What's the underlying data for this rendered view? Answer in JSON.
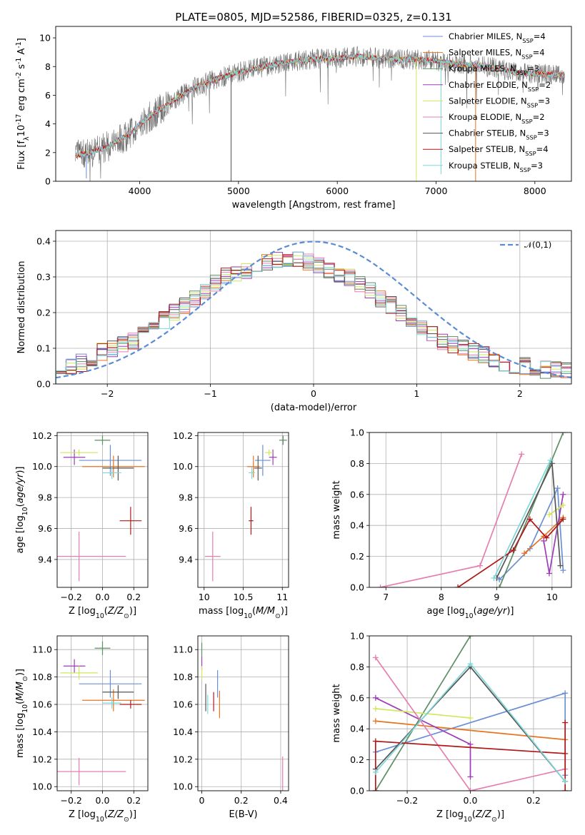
{
  "colors": [
    "#6a8fd6",
    "#e8731f",
    "#5e8f65",
    "#9e3cb8",
    "#cfe85c",
    "#e67fb0",
    "#555555",
    "#b01818",
    "#7fd8d8"
  ],
  "chart_data": [
    {
      "id": "spectrum",
      "type": "line",
      "title": "PLATE=0805, MJD=52586, FIBERID=0325, z=0.131",
      "xlabel": "wavelength [Angstrom, rest frame]",
      "ylabel": "Flux [f$_\\lambda$10$^{-17}$ erg cm$^{-2}$ s$^{-1}$ A$^{-1}$]",
      "xlim": [
        3150,
        8370
      ],
      "ylim": [
        0,
        10.8
      ],
      "xticks": [
        4000,
        5000,
        6000,
        7000,
        8000
      ],
      "yticks": [
        0,
        2,
        4,
        6,
        8,
        10
      ],
      "grid": false,
      "legend_position": "top-right",
      "continuum": {
        "x": [
          3350,
          3500,
          3700,
          3900,
          4000,
          4200,
          4400,
          4600,
          4800,
          5000,
          5200,
          5400,
          5600,
          5800,
          6000,
          6200,
          6400,
          6600,
          6800,
          7000,
          7200,
          7400,
          7600,
          7800,
          8000,
          8300
        ],
        "y": [
          1.8,
          2.0,
          2.5,
          3.3,
          4.0,
          5.0,
          5.9,
          6.7,
          7.2,
          7.6,
          7.9,
          8.2,
          8.4,
          8.55,
          8.6,
          8.7,
          8.6,
          8.5,
          8.5,
          8.4,
          8.2,
          8.1,
          7.9,
          7.6,
          7.5,
          7.4
        ]
      },
      "series": [
        {
          "name": "Chabrier MILES, N$_{SSP}$=4"
        },
        {
          "name": "Salpeter MILES, N$_{SSP}$=4"
        },
        {
          "name": "Kroupa MILES, N$_{SSP}$=3"
        },
        {
          "name": "Chabrier ELODIE, N$_{SSP}$=2"
        },
        {
          "name": "Salpeter ELODIE, N$_{SSP}$=3"
        },
        {
          "name": "Kroupa ELODIE, N$_{SSP}$=2"
        },
        {
          "name": "Chabrier STELIB, N$_{SSP}$=3"
        },
        {
          "name": "Salpeter STELIB, N$_{SSP}$=4"
        },
        {
          "name": "Kroupa STELIB, N$_{SSP}$=3"
        }
      ]
    },
    {
      "id": "residuals",
      "type": "histogram",
      "xlabel": "(data-model)/error",
      "ylabel": "Normed distribution",
      "xlim": [
        -2.5,
        2.5
      ],
      "ylim": [
        0,
        0.43
      ],
      "xticks": [
        -2,
        -1,
        0,
        1,
        2
      ],
      "xtick_labels": [
        "−2",
        "−1",
        "0",
        "1",
        "2"
      ],
      "yticks": [
        0.0,
        0.1,
        0.2,
        0.3,
        0.4
      ],
      "grid": true,
      "legend_position": "top-right",
      "reference": {
        "name": "$\\mathcal{N}(0,1)$",
        "style": "dashed",
        "color": "#5b8bd6"
      },
      "bin_width": 0.1,
      "base": [
        0.04,
        0.05,
        0.06,
        0.07,
        0.09,
        0.1,
        0.11,
        0.12,
        0.14,
        0.16,
        0.18,
        0.2,
        0.22,
        0.24,
        0.26,
        0.28,
        0.3,
        0.31,
        0.32,
        0.33,
        0.34,
        0.35,
        0.35,
        0.35,
        0.34,
        0.33,
        0.32,
        0.31,
        0.3,
        0.28,
        0.26,
        0.24,
        0.22,
        0.2,
        0.18,
        0.16,
        0.14,
        0.12,
        0.11,
        0.1,
        0.09,
        0.08,
        0.07,
        0.06,
        0.05,
        0.05,
        0.04,
        0.04,
        0.04,
        0.04
      ]
    },
    {
      "id": "age-vs-Z",
      "type": "errorbar",
      "xlabel": "Z [log$_{10}$($Z/Z_\\odot$)]",
      "ylabel": "age  [log$_{10}$($age/yr$)]",
      "xlim": [
        -0.29,
        0.29
      ],
      "ylim": [
        9.22,
        10.22
      ],
      "xticks": [
        -0.2,
        0.0,
        0.2
      ],
      "xtick_labels": [
        "−0.2",
        "0.0",
        "0.2"
      ],
      "yticks": [
        9.4,
        9.6,
        9.8,
        10.0,
        10.2
      ],
      "grid": true,
      "points": [
        {
          "x": 0.05,
          "xerr": 0.2,
          "y": 10.04,
          "yerr": 0.1,
          "color": "#6a8fd6"
        },
        {
          "x": 0.07,
          "xerr": 0.2,
          "y": 10.0,
          "yerr": 0.07,
          "color": "#e8731f"
        },
        {
          "x": 0.0,
          "xerr": 0.05,
          "y": 10.17,
          "yerr": 0.03,
          "color": "#5e8f65"
        },
        {
          "x": -0.18,
          "xerr": 0.07,
          "y": 10.06,
          "yerr": 0.05,
          "color": "#9e3cb8"
        },
        {
          "x": -0.15,
          "xerr": 0.12,
          "y": 10.09,
          "yerr": 0.02,
          "color": "#cfe85c"
        },
        {
          "x": -0.15,
          "xerr": 0.3,
          "y": 9.42,
          "yerr": 0.16,
          "color": "#e67fb0"
        },
        {
          "x": 0.1,
          "xerr": 0.1,
          "y": 9.99,
          "yerr": 0.08,
          "color": "#555555"
        },
        {
          "x": 0.18,
          "xerr": 0.07,
          "y": 9.65,
          "yerr": 0.09,
          "color": "#b01818"
        },
        {
          "x": 0.06,
          "xerr": 0.06,
          "y": 9.96,
          "yerr": 0.04,
          "color": "#7fd8d8"
        }
      ]
    },
    {
      "id": "age-vs-mass",
      "type": "errorbar",
      "xlabel": "mass [log$_{10}$($M/M_\\odot$)]",
      "ylabel": "",
      "xlim": [
        9.92,
        11.08
      ],
      "ylim": [
        9.22,
        10.22
      ],
      "xticks": [
        10.0,
        10.5,
        11.0
      ],
      "yticks": [
        9.4,
        9.6,
        9.8,
        10.0,
        10.2
      ],
      "grid": true,
      "points": [
        {
          "x": 10.75,
          "xerr": 0.1,
          "y": 10.04,
          "yerr": 0.1,
          "color": "#6a8fd6"
        },
        {
          "x": 10.63,
          "xerr": 0.08,
          "y": 10.0,
          "yerr": 0.07,
          "color": "#e8731f"
        },
        {
          "x": 11.01,
          "xerr": 0.05,
          "y": 10.17,
          "yerr": 0.03,
          "color": "#5e8f65"
        },
        {
          "x": 10.88,
          "xerr": 0.05,
          "y": 10.06,
          "yerr": 0.05,
          "color": "#9e3cb8"
        },
        {
          "x": 10.83,
          "xerr": 0.05,
          "y": 10.09,
          "yerr": 0.02,
          "color": "#cfe85c"
        },
        {
          "x": 10.11,
          "xerr": 0.1,
          "y": 9.42,
          "yerr": 0.16,
          "color": "#e67fb0"
        },
        {
          "x": 10.69,
          "xerr": 0.05,
          "y": 9.99,
          "yerr": 0.08,
          "color": "#555555"
        },
        {
          "x": 10.6,
          "xerr": 0.03,
          "y": 9.65,
          "yerr": 0.09,
          "color": "#b01818"
        },
        {
          "x": 10.61,
          "xerr": 0.04,
          "y": 9.96,
          "yerr": 0.04,
          "color": "#7fd8d8"
        }
      ]
    },
    {
      "id": "weight-vs-age",
      "type": "line",
      "xlabel": "age  [log$_{10}$($age/yr$)]",
      "ylabel": "mass weight",
      "xlim": [
        6.7,
        10.35
      ],
      "ylim": [
        0,
        1.0
      ],
      "xticks": [
        7,
        8,
        9,
        10
      ],
      "yticks": [
        0.0,
        0.2,
        0.4,
        0.6,
        0.8,
        1.0
      ],
      "grid": true,
      "series": [
        {
          "color": "#6a8fd6",
          "x": [
            9.05,
            9.6,
            10.1,
            10.2
          ],
          "y": [
            0.05,
            0.25,
            0.64,
            0.11
          ]
        },
        {
          "color": "#e8731f",
          "x": [
            9.5,
            9.85,
            10.2
          ],
          "y": [
            0.22,
            0.33,
            0.45
          ]
        },
        {
          "color": "#5e8f65",
          "x": [
            9.05,
            10.2
          ],
          "y": [
            0.0,
            1.0
          ]
        },
        {
          "color": "#9e3cb8",
          "x": [
            9.85,
            9.95,
            10.2
          ],
          "y": [
            0.3,
            0.09,
            0.6
          ]
        },
        {
          "color": "#cfe85c",
          "x": [
            9.95,
            10.2
          ],
          "y": [
            0.47,
            0.53
          ]
        },
        {
          "color": "#e67fb0",
          "x": [
            6.9,
            8.7,
            9.45
          ],
          "y": [
            0.0,
            0.14,
            0.86
          ]
        },
        {
          "color": "#555555",
          "x": [
            9.0,
            10.0,
            10.15
          ],
          "y": [
            0.06,
            0.8,
            0.14
          ]
        },
        {
          "color": "#b01818",
          "x": [
            8.3,
            9.3,
            9.6,
            9.9,
            10.2
          ],
          "y": [
            0.0,
            0.24,
            0.44,
            0.32,
            0.44
          ]
        },
        {
          "color": "#7fd8d8",
          "x": [
            8.95,
            9.97
          ],
          "y": [
            0.06,
            0.82
          ]
        }
      ]
    },
    {
      "id": "mass-vs-Z",
      "type": "errorbar",
      "xlabel": "Z [log$_{10}$($Z/Z_\\odot$)]",
      "ylabel": "mass [log$_{10}$($M/M_\\odot$)]",
      "xlim": [
        -0.29,
        0.29
      ],
      "ylim": [
        9.97,
        11.1
      ],
      "xticks": [
        -0.2,
        0.0,
        0.2
      ],
      "xtick_labels": [
        "−0.2",
        "0.0",
        "0.2"
      ],
      "yticks": [
        10.0,
        10.2,
        10.4,
        10.6,
        10.8,
        11.0
      ],
      "grid": true,
      "points": [
        {
          "x": 0.05,
          "xerr": 0.2,
          "y": 10.75,
          "yerr": 0.1,
          "color": "#6a8fd6"
        },
        {
          "x": 0.07,
          "xerr": 0.2,
          "y": 10.63,
          "yerr": 0.08,
          "color": "#e8731f"
        },
        {
          "x": 0.0,
          "xerr": 0.05,
          "y": 11.01,
          "yerr": 0.05,
          "color": "#5e8f65"
        },
        {
          "x": -0.18,
          "xerr": 0.07,
          "y": 10.88,
          "yerr": 0.05,
          "color": "#9e3cb8"
        },
        {
          "x": -0.15,
          "xerr": 0.12,
          "y": 10.83,
          "yerr": 0.05,
          "color": "#cfe85c"
        },
        {
          "x": -0.15,
          "xerr": 0.3,
          "y": 10.11,
          "yerr": 0.1,
          "color": "#e67fb0"
        },
        {
          "x": 0.1,
          "xerr": 0.1,
          "y": 10.69,
          "yerr": 0.05,
          "color": "#555555"
        },
        {
          "x": 0.18,
          "xerr": 0.07,
          "y": 10.6,
          "yerr": 0.03,
          "color": "#b01818"
        },
        {
          "x": 0.06,
          "xerr": 0.06,
          "y": 10.61,
          "yerr": 0.04,
          "color": "#7fd8d8"
        }
      ]
    },
    {
      "id": "mass-vs-ebv",
      "type": "errorbar",
      "xlabel": "E(B-V)",
      "ylabel": "",
      "xlim": [
        -0.02,
        0.44
      ],
      "ylim": [
        9.97,
        11.1
      ],
      "xticks": [
        0.0,
        0.2,
        0.4
      ],
      "yticks": [
        10.0,
        10.2,
        10.4,
        10.6,
        10.8,
        11.0
      ],
      "grid": true,
      "points": [
        {
          "x": 0.08,
          "xerr": 0,
          "y": 10.75,
          "yerr": 0.1,
          "color": "#6a8fd6"
        },
        {
          "x": 0.09,
          "xerr": 0,
          "y": 10.6,
          "yerr": 0.1,
          "color": "#e8731f"
        },
        {
          "x": 0.0,
          "xerr": 0,
          "y": 11.0,
          "yerr": 0.05,
          "color": "#5e8f65"
        },
        {
          "x": 0.0,
          "xerr": 0,
          "y": 10.9,
          "yerr": 0.05,
          "color": "#9e3cb8"
        },
        {
          "x": 0.0,
          "xerr": 0,
          "y": 10.83,
          "yerr": 0.05,
          "color": "#cfe85c"
        },
        {
          "x": 0.41,
          "xerr": 0,
          "y": 10.07,
          "yerr": 0.15,
          "color": "#e67fb0"
        },
        {
          "x": 0.02,
          "xerr": 0,
          "y": 10.65,
          "yerr": 0.1,
          "color": "#555555"
        },
        {
          "x": 0.06,
          "xerr": 0,
          "y": 10.62,
          "yerr": 0.07,
          "color": "#b01818"
        },
        {
          "x": 0.03,
          "xerr": 0,
          "y": 10.6,
          "yerr": 0.07,
          "color": "#7fd8d8"
        }
      ]
    },
    {
      "id": "weight-vs-Z",
      "type": "line",
      "xlabel": "Z [log$_{10}$($Z/Z_\\odot$)]",
      "ylabel": "mass weight",
      "xlim": [
        -0.32,
        0.32
      ],
      "ylim": [
        0,
        1.0
      ],
      "xticks": [
        -0.2,
        0.0,
        0.2
      ],
      "xtick_labels": [
        "−0.2",
        "0.0",
        "0.2"
      ],
      "yticks": [
        0.0,
        0.2,
        0.4,
        0.6,
        0.8,
        1.0
      ],
      "grid": true,
      "series": [
        {
          "color": "#6a8fd6",
          "x": [
            -0.3,
            0.3,
            0.3
          ],
          "y": [
            0.25,
            0.63,
            0.1
          ]
        },
        {
          "color": "#e8731f",
          "x": [
            -0.3,
            0.3
          ],
          "y": [
            0.45,
            0.33
          ]
        },
        {
          "color": "#5e8f65",
          "x": [
            -0.3,
            0.0
          ],
          "y": [
            0.0,
            1.0
          ]
        },
        {
          "color": "#9e3cb8",
          "x": [
            -0.3,
            0.0,
            0.0
          ],
          "y": [
            0.6,
            0.3,
            0.09
          ]
        },
        {
          "color": "#cfe85c",
          "x": [
            -0.3,
            0.0
          ],
          "y": [
            0.53,
            0.47
          ]
        },
        {
          "color": "#e67fb0",
          "x": [
            -0.3,
            0.0,
            0.3
          ],
          "y": [
            0.86,
            0.0,
            0.14
          ]
        },
        {
          "color": "#555555",
          "x": [
            -0.3,
            0.0,
            0.3
          ],
          "y": [
            0.14,
            0.8,
            0.06
          ]
        },
        {
          "color": "#b01818",
          "x": [
            -0.3,
            -0.3,
            0.3,
            0.3,
            0.3
          ],
          "y": [
            0.0,
            0.32,
            0.24,
            0.44,
            0.0
          ]
        },
        {
          "color": "#7fd8d8",
          "x": [
            -0.3,
            0.0,
            0.3
          ],
          "y": [
            0.12,
            0.82,
            0.06
          ]
        }
      ]
    }
  ]
}
